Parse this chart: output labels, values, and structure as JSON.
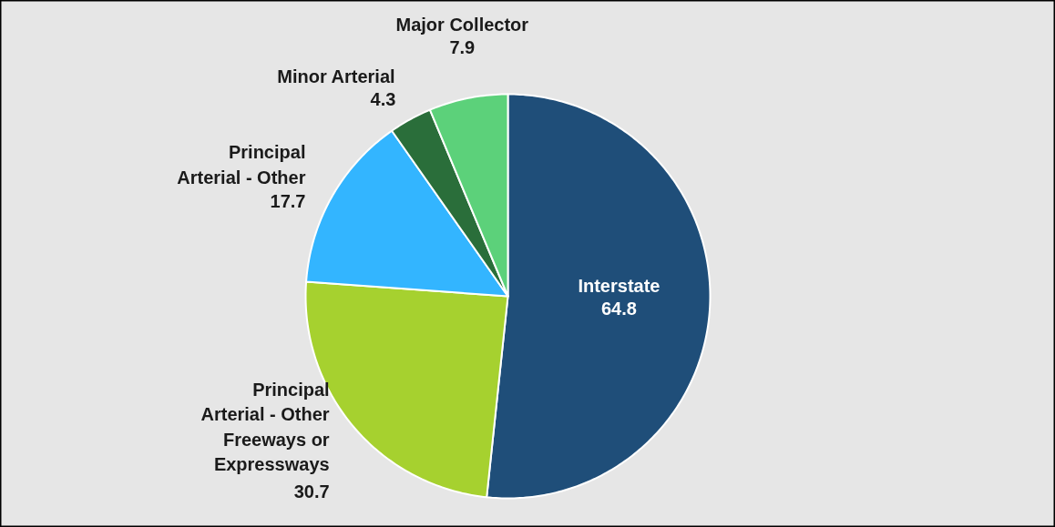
{
  "chart_data": {
    "type": "pie",
    "categories": [
      "Interstate",
      "Principal Arterial - Other Freeways or Expressways",
      "Principal Arterial - Other",
      "Minor Arterial",
      "Major Collector"
    ],
    "values": [
      64.8,
      30.7,
      17.7,
      4.3,
      7.9
    ],
    "colors": [
      "#1f4e79",
      "#a6d12f",
      "#33b5ff",
      "#2a6e3a",
      "#5cd17a"
    ],
    "data_labels": true
  }
}
